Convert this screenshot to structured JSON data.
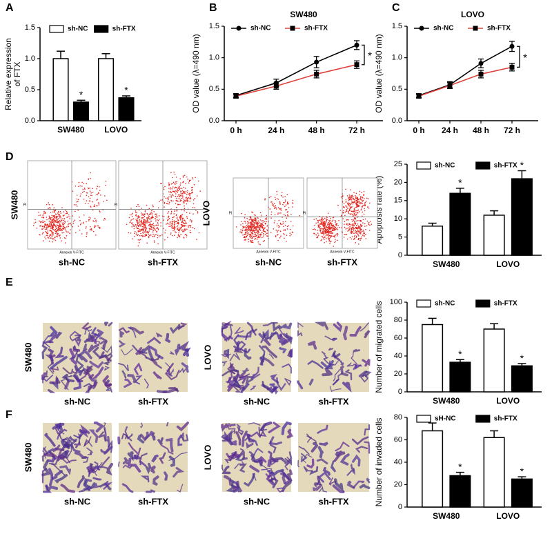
{
  "panel_labels": [
    "A",
    "B",
    "C",
    "D",
    "E",
    "F"
  ],
  "chart_data": [
    {
      "type": "bar",
      "ylabel": [
        "Relative expression",
        "of FTX"
      ],
      "categories": [
        "SW480",
        "LOVO"
      ],
      "series": [
        {
          "name": "sh-NC",
          "color": "#ffffff",
          "values": [
            1.0,
            1.0
          ],
          "errors": [
            0.12,
            0.08
          ]
        },
        {
          "name": "sh-FTX",
          "color": "#000000",
          "values": [
            0.3,
            0.37
          ],
          "errors": [
            0.03,
            0.03
          ],
          "significance": [
            "*",
            "*"
          ]
        }
      ],
      "ylim": [
        0,
        1.5
      ],
      "yticks": [
        {
          "value": 0,
          "label": "0.0"
        },
        0.5,
        {
          "value": 1,
          "label": "1.0"
        },
        1.5
      ],
      "legend": "top"
    },
    {
      "type": "line",
      "title": "SW480",
      "ylabel": "OD value (λ=490 nm)",
      "categories": [
        "0 h",
        "24 h",
        "48 h",
        "72 h"
      ],
      "series": [
        {
          "name": "sh-NC",
          "color": "#000000",
          "marker": "circle",
          "values": [
            0.4,
            0.6,
            0.93,
            1.2
          ],
          "errors": [
            0.03,
            0.06,
            0.09,
            0.07
          ]
        },
        {
          "name": "sh-FTX",
          "color": "#e0403a",
          "marker": "square",
          "values": [
            0.39,
            0.55,
            0.74,
            0.89
          ],
          "errors": [
            0.03,
            0.05,
            0.06,
            0.06
          ]
        }
      ],
      "ylim": [
        0,
        1.5
      ],
      "yticks": [
        {
          "value": 0,
          "label": "0.0"
        },
        0.5,
        {
          "value": 1,
          "label": "1.0"
        },
        1.5
      ],
      "bracket_label": "*",
      "legend": "top-left"
    },
    {
      "type": "line",
      "title": "LOVO",
      "ylabel": "OD value (λ=490 nm)",
      "categories": [
        "0 h",
        "24 h",
        "48 h",
        "72 h"
      ],
      "series": [
        {
          "name": "sh-NC",
          "color": "#000000",
          "marker": "circle",
          "values": [
            0.4,
            0.57,
            0.91,
            1.18
          ],
          "errors": [
            0.03,
            0.05,
            0.07,
            0.08
          ]
        },
        {
          "name": "sh-FTX",
          "color": "#e0403a",
          "marker": "square",
          "values": [
            0.39,
            0.56,
            0.74,
            0.85
          ],
          "errors": [
            0.03,
            0.05,
            0.06,
            0.06
          ]
        }
      ],
      "ylim": [
        0,
        1.5
      ],
      "yticks": [
        {
          "value": 0,
          "label": "0.0"
        },
        0.5,
        {
          "value": 1,
          "label": "1.0"
        },
        1.5
      ],
      "bracket_label": "*",
      "legend": "top-left"
    },
    {
      "type": "bar",
      "ylabel": "Apoptosis rate (%)",
      "categories": [
        "SW480",
        "LOVO"
      ],
      "series": [
        {
          "name": "sh-NC",
          "color": "#ffffff",
          "values": [
            8,
            11
          ],
          "errors": [
            0.8,
            1.2
          ]
        },
        {
          "name": "sh-FTX",
          "color": "#000000",
          "values": [
            17,
            21
          ],
          "errors": [
            1.4,
            2.2
          ],
          "significance": [
            "*",
            "*"
          ]
        }
      ],
      "ylim": [
        0,
        25
      ],
      "yticks": [
        0,
        5,
        10,
        15,
        20,
        25
      ],
      "legend": "top"
    },
    {
      "type": "bar",
      "ylabel": "Number of migrated cells",
      "categories": [
        "SW480",
        "LOVO"
      ],
      "series": [
        {
          "name": "sh-NC",
          "color": "#ffffff",
          "values": [
            75,
            70
          ],
          "errors": [
            7,
            6
          ]
        },
        {
          "name": "sh-FTX",
          "color": "#000000",
          "values": [
            33,
            29
          ],
          "errors": [
            3,
            2.5
          ],
          "significance": [
            "*",
            "*"
          ]
        }
      ],
      "ylim": [
        0,
        100
      ],
      "yticks": [
        0,
        20,
        40,
        60,
        80,
        100
      ],
      "legend": "top"
    },
    {
      "type": "bar",
      "ylabel": "Number of invaded cells",
      "categories": [
        "SW480",
        "LOVO"
      ],
      "series": [
        {
          "name": "sH-NC",
          "color": "#ffffff",
          "values": [
            68,
            62
          ],
          "errors": [
            7,
            6
          ]
        },
        {
          "name": "sh-FTX",
          "color": "#000000",
          "values": [
            28,
            25
          ],
          "errors": [
            3,
            2
          ],
          "significance": [
            "*",
            "*"
          ]
        }
      ],
      "ylim": [
        0,
        80
      ],
      "yticks": [
        0,
        20,
        40,
        60,
        80
      ],
      "legend": "top"
    }
  ],
  "image_panels": [
    {
      "type": "flow_cytometry",
      "axis_labels": {
        "x": "Annexin V-FITC",
        "y": "PI"
      },
      "groups": [
        {
          "cell_line": "SW480",
          "captions": [
            "sh-NC",
            "sh-FTX"
          ]
        },
        {
          "cell_line": "LOVO",
          "captions": [
            "sh-NC",
            "sh-FTX"
          ]
        }
      ]
    },
    {
      "type": "transwell",
      "groups": [
        {
          "cell_line": "SW480",
          "captions": [
            "sh-NC",
            "sh-FTX"
          ]
        },
        {
          "cell_line": "LOVO",
          "captions": [
            "sh-NC",
            "sh-FTX"
          ]
        }
      ]
    },
    {
      "type": "transwell",
      "groups": [
        {
          "cell_line": "SW480",
          "captions": [
            "sh-NC",
            "sh-FTX"
          ]
        },
        {
          "cell_line": "LOVO",
          "captions": [
            "sh-NC",
            "sh-FTX"
          ]
        }
      ]
    }
  ]
}
